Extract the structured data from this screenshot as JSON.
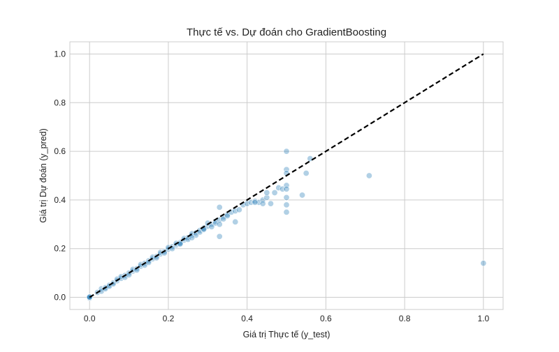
{
  "chart_data": {
    "type": "scatter",
    "title": "Thực tế vs. Dự đoán cho GradientBoosting",
    "xlabel": "Giá trị Thực tế (y_test)",
    "ylabel": "Giá trị Dự đoán (y_pred)",
    "xlim": [
      -0.05,
      1.05
    ],
    "ylim": [
      -0.05,
      1.05
    ],
    "xticks": [
      0.0,
      0.2,
      0.4,
      0.6,
      0.8,
      1.0
    ],
    "yticks": [
      0.0,
      0.2,
      0.4,
      0.6,
      0.8,
      1.0
    ],
    "tick_labels": [
      "0.0",
      "0.2",
      "0.4",
      "0.6",
      "0.8",
      "1.0"
    ],
    "grid": true,
    "point_color": "#1f77b4",
    "reference_line": {
      "x": [
        0,
        1
      ],
      "y": [
        0,
        1
      ],
      "color": "#000000",
      "style": "dashed"
    },
    "points": {
      "x": [
        0.0,
        0.0,
        0.0,
        0.0,
        0.02,
        0.03,
        0.03,
        0.04,
        0.04,
        0.05,
        0.05,
        0.06,
        0.06,
        0.07,
        0.07,
        0.08,
        0.08,
        0.09,
        0.09,
        0.1,
        0.1,
        0.11,
        0.11,
        0.12,
        0.12,
        0.13,
        0.13,
        0.14,
        0.14,
        0.15,
        0.15,
        0.16,
        0.16,
        0.17,
        0.17,
        0.18,
        0.18,
        0.19,
        0.19,
        0.2,
        0.2,
        0.21,
        0.21,
        0.22,
        0.22,
        0.23,
        0.23,
        0.24,
        0.24,
        0.25,
        0.25,
        0.26,
        0.26,
        0.27,
        0.27,
        0.28,
        0.28,
        0.29,
        0.29,
        0.3,
        0.3,
        0.31,
        0.31,
        0.32,
        0.32,
        0.33,
        0.33,
        0.34,
        0.34,
        0.35,
        0.35,
        0.36,
        0.37,
        0.38,
        0.39,
        0.4,
        0.41,
        0.42,
        0.43,
        0.44,
        0.45,
        0.46,
        0.47,
        0.48,
        0.49,
        0.5,
        0.5,
        0.5,
        0.5,
        0.5,
        0.5,
        0.5,
        0.5,
        0.54,
        0.55,
        0.56,
        0.71,
        1.0,
        0.33,
        0.44,
        0.33,
        0.37,
        0.42,
        0.45,
        0.23,
        0.26,
        0.29
      ],
      "y": [
        0.0,
        -0.003,
        0.002,
        0.001,
        0.02,
        0.035,
        0.025,
        0.04,
        0.035,
        0.05,
        0.045,
        0.06,
        0.055,
        0.068,
        0.075,
        0.078,
        0.085,
        0.09,
        0.082,
        0.1,
        0.092,
        0.108,
        0.115,
        0.118,
        0.112,
        0.128,
        0.135,
        0.14,
        0.132,
        0.15,
        0.143,
        0.158,
        0.165,
        0.168,
        0.162,
        0.178,
        0.185,
        0.188,
        0.182,
        0.198,
        0.205,
        0.208,
        0.2,
        0.215,
        0.222,
        0.225,
        0.218,
        0.235,
        0.242,
        0.245,
        0.238,
        0.255,
        0.262,
        0.265,
        0.255,
        0.275,
        0.268,
        0.285,
        0.278,
        0.292,
        0.305,
        0.3,
        0.29,
        0.312,
        0.305,
        0.318,
        0.37,
        0.33,
        0.322,
        0.34,
        0.335,
        0.35,
        0.355,
        0.36,
        0.38,
        0.385,
        0.39,
        0.395,
        0.39,
        0.4,
        0.41,
        0.385,
        0.43,
        0.45,
        0.445,
        0.6,
        0.525,
        0.51,
        0.46,
        0.445,
        0.38,
        0.35,
        0.41,
        0.42,
        0.51,
        0.57,
        0.5,
        0.14,
        0.25,
        0.385,
        0.3,
        0.31,
        0.39,
        0.43,
        0.22,
        0.245,
        0.28
      ]
    }
  }
}
